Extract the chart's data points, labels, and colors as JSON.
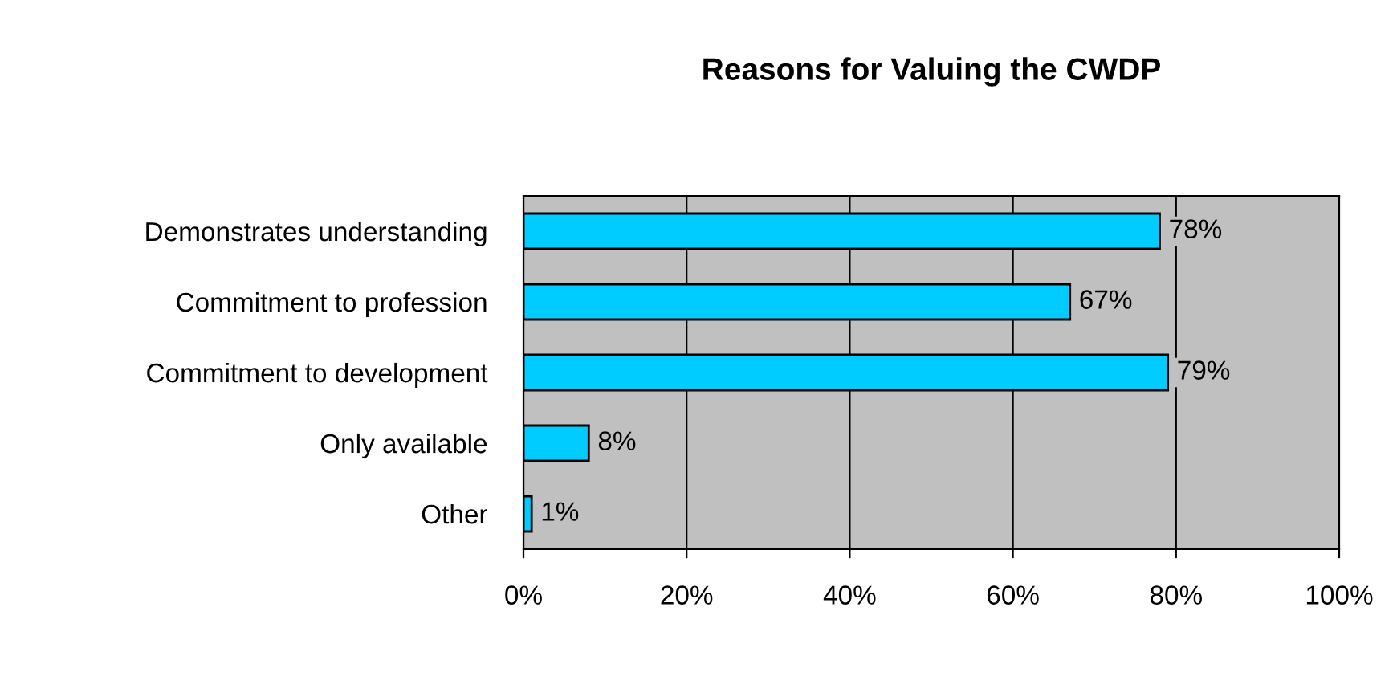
{
  "chart_data": {
    "type": "bar",
    "orientation": "horizontal",
    "title": "Reasons for Valuing the CWDP",
    "categories": [
      "Demonstrates understanding",
      "Commitment to profession",
      "Commitment to development",
      "Only available",
      "Other"
    ],
    "values": [
      78,
      67,
      79,
      8,
      1
    ],
    "value_labels": [
      "78%",
      "67%",
      "79%",
      "8%",
      "1%"
    ],
    "color": "#00ccff",
    "xlim": [
      0,
      100
    ],
    "xticks": [
      {
        "value": 0,
        "label": "0%"
      },
      {
        "value": 20,
        "label": "20%"
      },
      {
        "value": 40,
        "label": "40%"
      },
      {
        "value": 60,
        "label": "60%"
      },
      {
        "value": 80,
        "label": "80%"
      },
      {
        "value": 100,
        "label": "100%"
      }
    ],
    "grid": "x"
  }
}
